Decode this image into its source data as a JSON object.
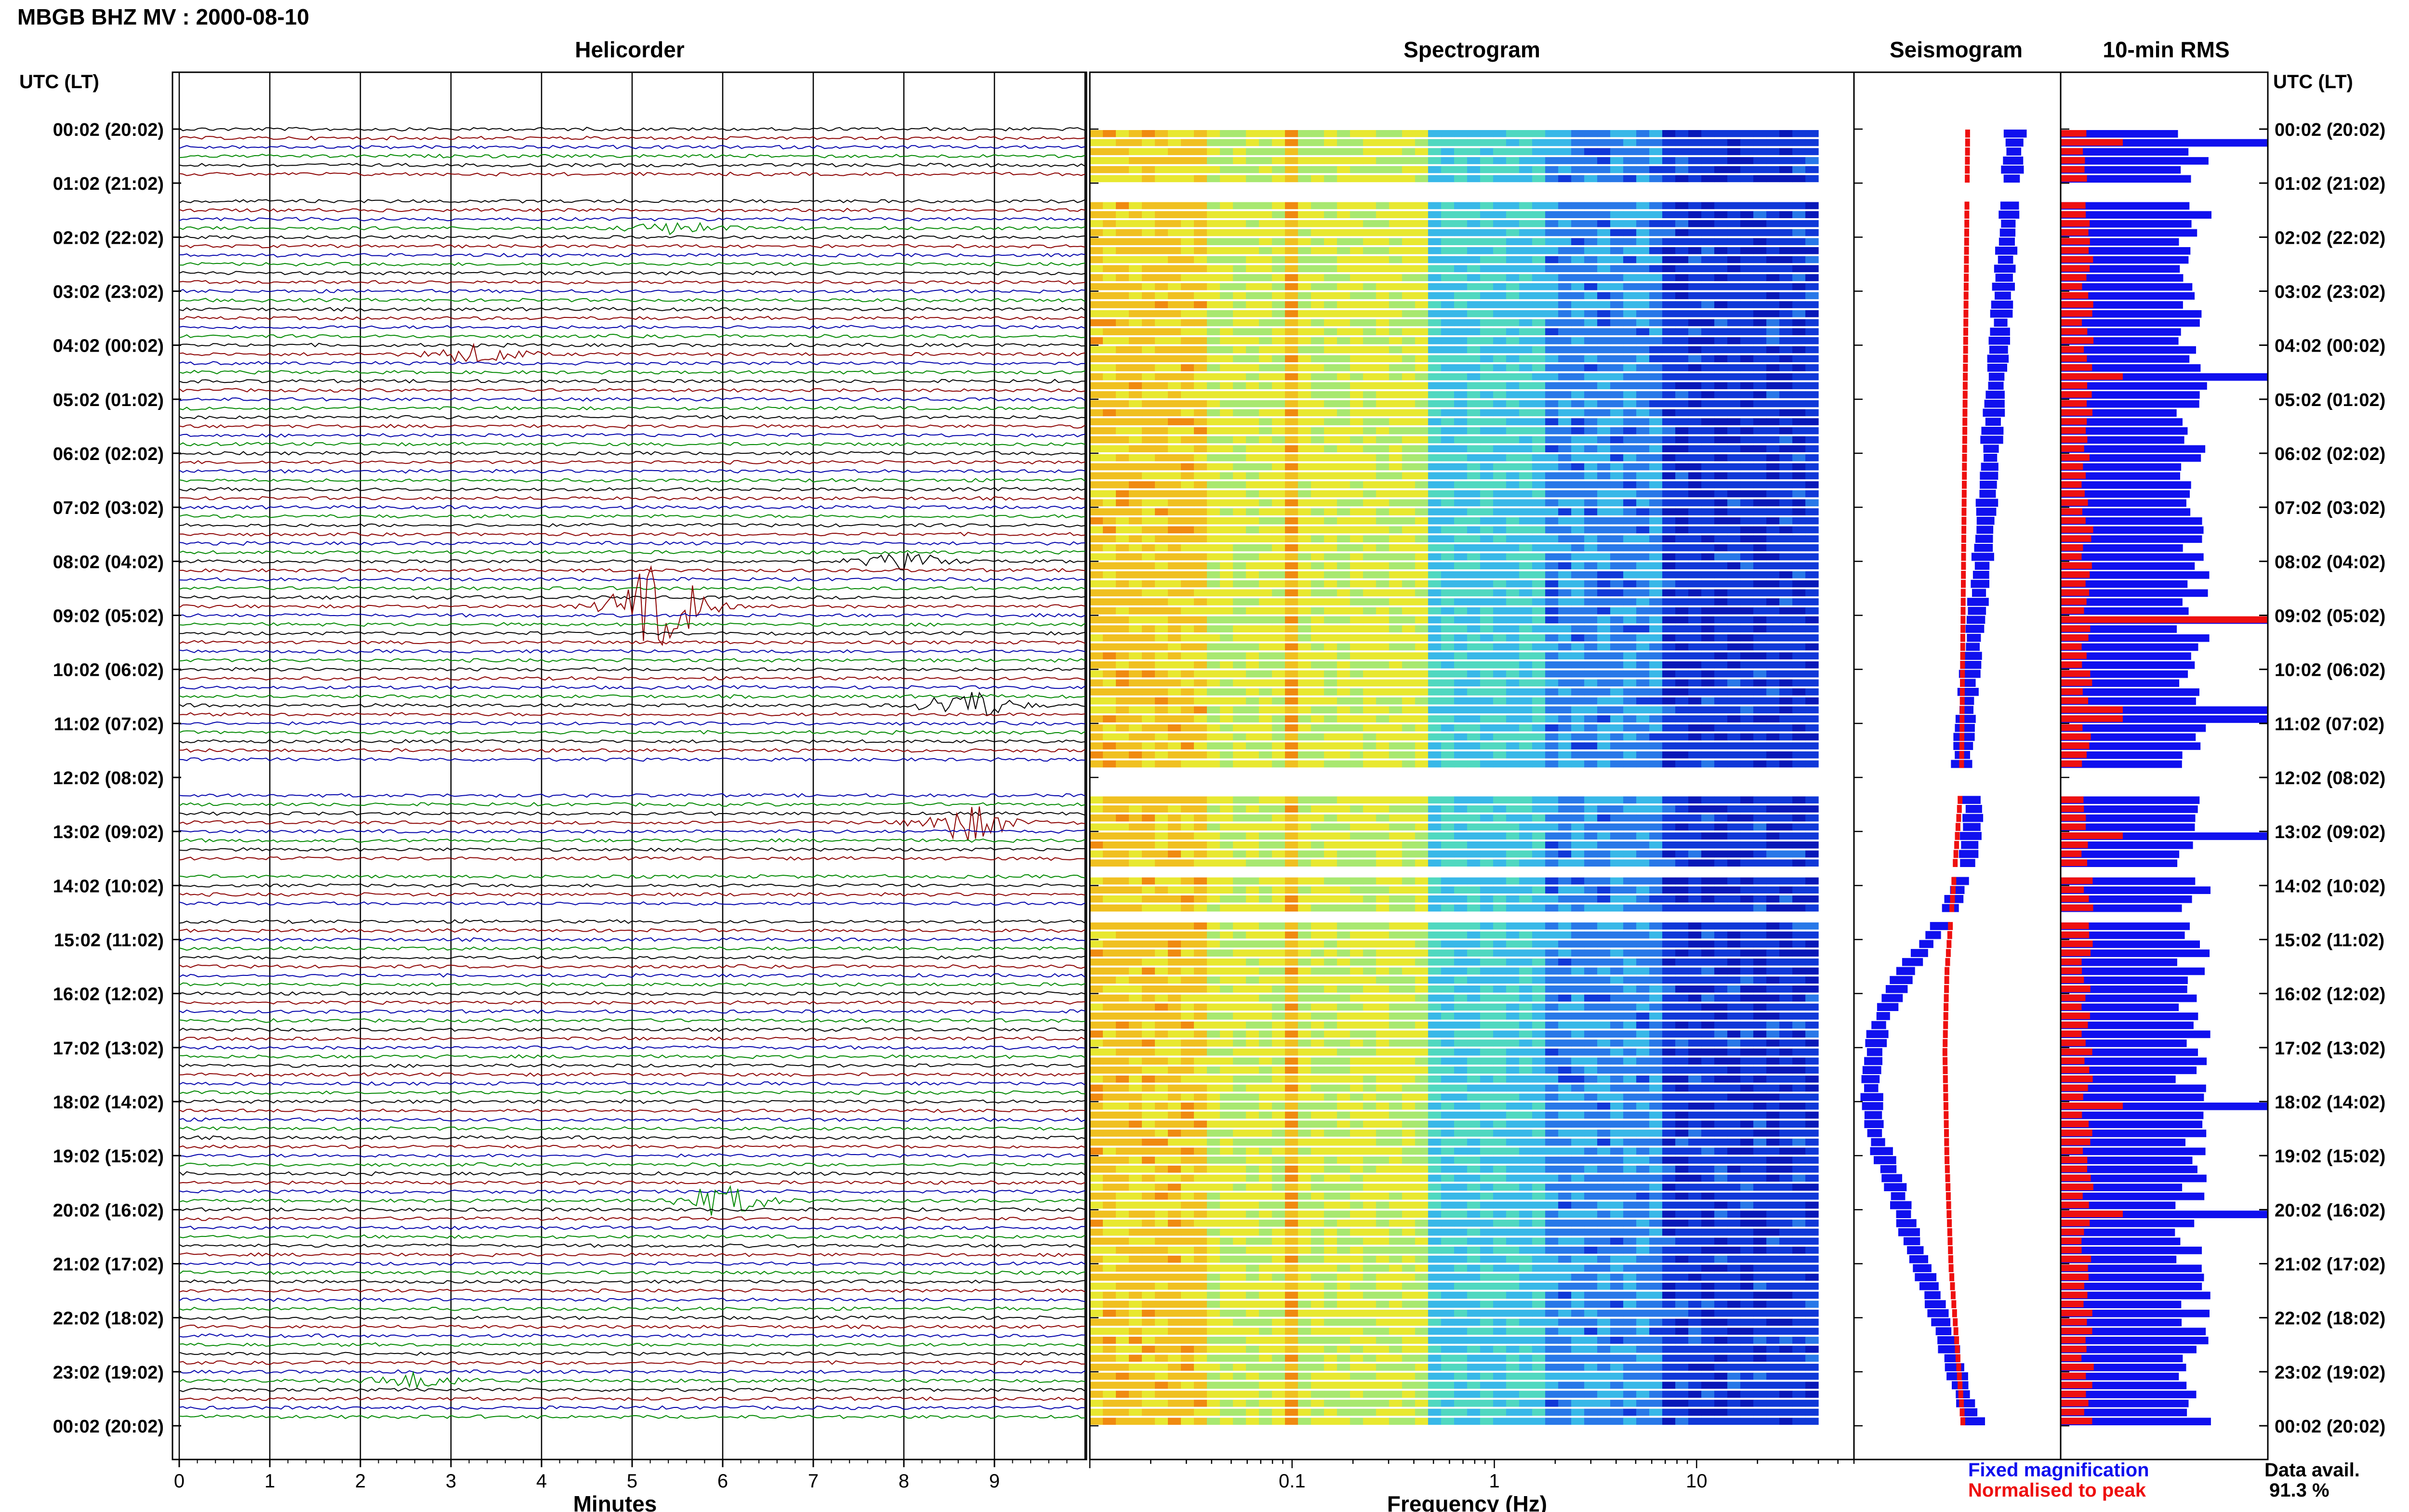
{
  "title": "MBGB BHZ MV : 2000-08-10",
  "panels": {
    "helicorder": "Helicorder",
    "spectrogram": "Spectrogram",
    "seismogram": "Seismogram",
    "rms": "10-min RMS"
  },
  "utc_header_left": "UTC (LT)",
  "utc_header_right": "UTC (LT)",
  "legend": {
    "fixed": "Fixed magnification",
    "normalised": "Normalised to peak",
    "fixed_color": "#1010ee",
    "normalised_color": "#ee1010"
  },
  "data_avail": {
    "label": "Data avail.",
    "value": "91.3 %"
  },
  "chart_data": [
    {
      "type": "line",
      "name": "Helicorder",
      "xlabel": "Minutes",
      "ylabel": "",
      "x_ticks": [
        "0",
        "1",
        "2",
        "3",
        "4",
        "5",
        "6",
        "7",
        "8",
        "9"
      ],
      "xlim": [
        0,
        10
      ],
      "time_labels": [
        "00:02 (20:02)",
        "01:02 (21:02)",
        "02:02 (22:02)",
        "03:02 (23:02)",
        "04:02 (00:02)",
        "05:02 (01:02)",
        "06:02 (02:02)",
        "07:02 (03:02)",
        "08:02 (04:02)",
        "09:02 (05:02)",
        "10:02 (06:02)",
        "11:02 (07:02)",
        "12:02 (08:02)",
        "13:02 (09:02)",
        "14:02 (10:02)",
        "15:02 (11:02)",
        "16:02 (12:02)",
        "17:02 (13:02)",
        "18:02 (14:02)",
        "19:02 (15:02)",
        "20:02 (16:02)",
        "21:02 (17:02)",
        "22:02 (18:02)",
        "23:02 (19:02)",
        "00:02 (20:02)"
      ],
      "trace_colors": [
        "#000000",
        "#8b0000",
        "#0000aa",
        "#008800"
      ],
      "traces_per_hour": 6,
      "gaps_hours": [
        [
          1.0,
          1.25
        ],
        [
          11.75,
          12.3
        ],
        [
          13.55,
          13.7
        ],
        [
          14.35,
          14.65
        ]
      ],
      "events": [
        {
          "hour": 4.2,
          "minute": 3.3,
          "amp": 0.6,
          "color": "#008800"
        },
        {
          "hour": 8.8,
          "minute": 5.3,
          "amp": 2.8,
          "color": "#0000aa"
        },
        {
          "hour": 10.6,
          "minute": 8.7,
          "amp": 1.0,
          "color": "#000000"
        },
        {
          "hour": 12.8,
          "minute": 8.7,
          "amp": 1.2,
          "color": "#0000aa"
        },
        {
          "hour": 19.8,
          "minute": 6.0,
          "amp": 1.0,
          "color": "#008800"
        },
        {
          "hour": 8.0,
          "minute": 8.0,
          "amp": 0.5,
          "color": "#000000"
        },
        {
          "hour": 23.2,
          "minute": 2.6,
          "amp": 0.5,
          "color": "#000000"
        },
        {
          "hour": 1.9,
          "minute": 5.5,
          "amp": 0.4,
          "color": "#000000"
        }
      ]
    },
    {
      "type": "heatmap",
      "name": "Spectrogram",
      "xlabel": "Frequency (Hz)",
      "x_scale": "log",
      "x_ticks": [
        "0.1",
        "1",
        "10"
      ],
      "xlim": [
        0.01,
        60
      ]
    },
    {
      "type": "line",
      "name": "Seismogram",
      "series": [
        {
          "name": "Fixed magnification",
          "color": "#1010ee",
          "hours": [
            0,
            2,
            4,
            6,
            8,
            10,
            11.7,
            12.5,
            13.5,
            14.5,
            15.5,
            16.5,
            17.5,
            18.5,
            19.5,
            20.5,
            21.5,
            22.5,
            23.5,
            24
          ],
          "values": [
            0.78,
            0.74,
            0.7,
            0.66,
            0.62,
            0.56,
            0.52,
            0.58,
            0.55,
            0.45,
            0.25,
            0.12,
            0.08,
            0.1,
            0.2,
            0.28,
            0.38,
            0.46,
            0.54,
            0.6
          ]
        },
        {
          "name": "Normalised to peak",
          "color": "#ee1010",
          "hours": [
            0,
            12,
            13,
            14.5,
            15.5,
            17,
            19,
            21,
            23,
            24
          ],
          "values": [
            0.55,
            0.52,
            0.5,
            0.47,
            0.45,
            0.44,
            0.45,
            0.47,
            0.51,
            0.53
          ]
        }
      ]
    },
    {
      "type": "bar",
      "name": "10-min RMS",
      "orientation": "horizontal",
      "bins_per_hour": 6,
      "series": [
        {
          "name": "Fixed magnification",
          "color": "#1010ee"
        },
        {
          "name": "Normalised to peak",
          "color": "#ee1010"
        }
      ],
      "spikes": [
        {
          "hour": 0.1,
          "value": 1.0
        },
        {
          "hour": 4.55,
          "value": 1.0
        },
        {
          "hour": 9.0,
          "value": 1.0
        },
        {
          "hour": 10.75,
          "value": 1.0
        },
        {
          "hour": 13.0,
          "value": 1.0
        },
        {
          "hour": 18.0,
          "value": 1.0
        },
        {
          "hour": 20.0,
          "value": 1.0
        }
      ]
    }
  ]
}
